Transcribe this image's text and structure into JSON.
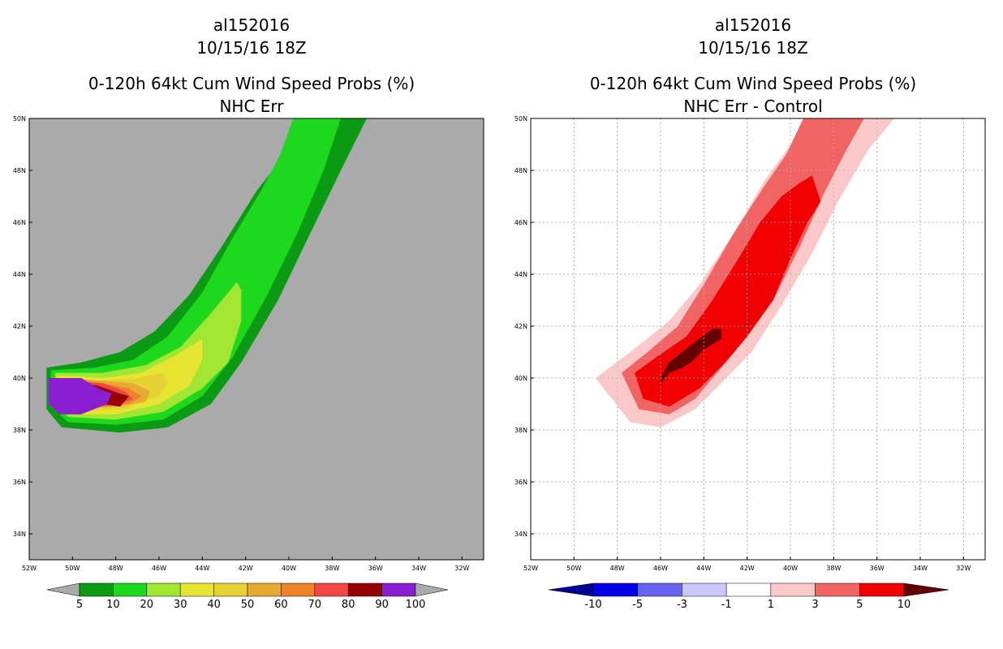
{
  "chart_data": [
    {
      "type": "filled-contour-map",
      "storm_id": "al152016",
      "datetime": "10/15/16 18Z",
      "title": "0-120h 64kt Cum Wind Speed Probs (%)",
      "subtitle": "NHC Err",
      "xlim": [
        -52,
        -31
      ],
      "ylim": [
        33,
        50
      ],
      "x_ticks": [
        "52W",
        "50W",
        "48W",
        "46W",
        "44W",
        "42W",
        "40W",
        "38W",
        "36W",
        "34W",
        "32W"
      ],
      "x_tick_values": [
        -52,
        -50,
        -48,
        -46,
        -44,
        -42,
        -40,
        -38,
        -36,
        -34,
        -32
      ],
      "y_ticks": [
        "34N",
        "36N",
        "38N",
        "40N",
        "42N",
        "44N",
        "46N",
        "48N",
        "50N"
      ],
      "y_tick_values": [
        34,
        36,
        38,
        40,
        42,
        44,
        46,
        48,
        50
      ],
      "grid": false,
      "background": "#aaaaaa",
      "colorbar": {
        "labels": [
          "5",
          "10",
          "20",
          "30",
          "40",
          "50",
          "60",
          "70",
          "80",
          "90",
          "100"
        ],
        "under_color": "#aaaaaa",
        "over_color": "#aaaaaa",
        "colors": [
          "#0a9a14",
          "#1ed81e",
          "#a0e632",
          "#e6e632",
          "#e6d232",
          "#e6aa32",
          "#f08228",
          "#f04646",
          "#960000",
          "#8c1ed2"
        ]
      },
      "contours": [
        {
          "level": 5,
          "color": "#0a9a14",
          "points": [
            [
              -51.2,
              40.4
            ],
            [
              -49.6,
              40.6
            ],
            [
              -47.8,
              41.0
            ],
            [
              -46.2,
              41.8
            ],
            [
              -44.6,
              43.2
            ],
            [
              -43.0,
              45.2
            ],
            [
              -41.5,
              47.2
            ],
            [
              -40.2,
              48.6
            ],
            [
              -39.4,
              50.0
            ],
            [
              -36.4,
              50.0
            ],
            [
              -37.6,
              48.0
            ],
            [
              -39.0,
              45.6
            ],
            [
              -40.5,
              43.0
            ],
            [
              -42.2,
              40.6
            ],
            [
              -43.6,
              39.0
            ],
            [
              -45.6,
              38.1
            ],
            [
              -47.8,
              37.9
            ],
            [
              -50.5,
              38.1
            ],
            [
              -51.2,
              38.8
            ]
          ]
        },
        {
          "level": 10,
          "color": "#1ed81e",
          "points": [
            [
              -51.0,
              40.3
            ],
            [
              -49.0,
              40.4
            ],
            [
              -47.2,
              40.7
            ],
            [
              -45.6,
              41.6
            ],
            [
              -44.0,
              43.3
            ],
            [
              -42.6,
              45.4
            ],
            [
              -41.3,
              47.2
            ],
            [
              -40.4,
              48.6
            ],
            [
              -39.8,
              50.0
            ],
            [
              -37.6,
              50.0
            ],
            [
              -38.4,
              48.0
            ],
            [
              -39.6,
              45.6
            ],
            [
              -41.0,
              43.2
            ],
            [
              -42.6,
              40.8
            ],
            [
              -44.0,
              39.3
            ],
            [
              -45.8,
              38.4
            ],
            [
              -48.0,
              38.2
            ],
            [
              -50.2,
              38.3
            ],
            [
              -51.0,
              38.9
            ]
          ]
        },
        {
          "level": 20,
          "color": "#a0e632",
          "points": [
            [
              -50.8,
              40.2
            ],
            [
              -48.6,
              40.2
            ],
            [
              -46.6,
              40.5
            ],
            [
              -45.0,
              41.2
            ],
            [
              -43.6,
              42.5
            ],
            [
              -42.4,
              43.7
            ],
            [
              -42.2,
              43.4
            ],
            [
              -42.2,
              42.2
            ],
            [
              -42.8,
              40.6
            ],
            [
              -44.0,
              39.6
            ],
            [
              -45.8,
              38.7
            ],
            [
              -48.0,
              38.4
            ],
            [
              -50.2,
              38.5
            ],
            [
              -50.8,
              39.0
            ]
          ]
        },
        {
          "level": 30,
          "color": "#e6e632",
          "points": [
            [
              -50.7,
              40.1
            ],
            [
              -48.6,
              40.0
            ],
            [
              -46.8,
              40.2
            ],
            [
              -45.2,
              40.9
            ],
            [
              -44.0,
              41.5
            ],
            [
              -44.0,
              40.7
            ],
            [
              -44.6,
              39.7
            ],
            [
              -46.0,
              39.0
            ],
            [
              -48.0,
              38.6
            ],
            [
              -50.0,
              38.6
            ],
            [
              -50.7,
              39.1
            ]
          ]
        },
        {
          "level": 40,
          "color": "#e6d232",
          "points": [
            [
              -50.6,
              40.0
            ],
            [
              -48.6,
              39.9
            ],
            [
              -47.0,
              40.0
            ],
            [
              -45.8,
              40.2
            ],
            [
              -45.6,
              39.8
            ],
            [
              -46.0,
              39.3
            ],
            [
              -47.6,
              38.8
            ],
            [
              -50.0,
              38.7
            ],
            [
              -50.6,
              39.2
            ]
          ]
        },
        {
          "level": 50,
          "color": "#e6aa32",
          "points": [
            [
              -50.5,
              40.0
            ],
            [
              -48.6,
              39.9
            ],
            [
              -47.2,
              39.8
            ],
            [
              -46.4,
              39.5
            ],
            [
              -46.6,
              39.1
            ],
            [
              -47.8,
              38.9
            ],
            [
              -50.0,
              38.8
            ],
            [
              -50.5,
              39.2
            ]
          ]
        },
        {
          "level": 60,
          "color": "#f08228",
          "points": [
            [
              -50.5,
              40.0
            ],
            [
              -48.6,
              39.8
            ],
            [
              -47.4,
              39.6
            ],
            [
              -46.8,
              39.3
            ],
            [
              -47.4,
              39.0
            ],
            [
              -48.6,
              38.9
            ],
            [
              -50.0,
              38.9
            ],
            [
              -50.5,
              39.3
            ]
          ]
        },
        {
          "level": 70,
          "color": "#f04646",
          "points": [
            [
              -50.4,
              39.9
            ],
            [
              -48.6,
              39.8
            ],
            [
              -47.6,
              39.5
            ],
            [
              -47.2,
              39.2
            ],
            [
              -47.8,
              39.0
            ],
            [
              -48.8,
              38.9
            ],
            [
              -50.0,
              38.9
            ],
            [
              -50.4,
              39.3
            ]
          ]
        },
        {
          "level": 80,
          "color": "#960000",
          "points": [
            [
              -50.3,
              39.9
            ],
            [
              -48.8,
              39.7
            ],
            [
              -47.8,
              39.4
            ],
            [
              -47.4,
              39.3
            ],
            [
              -47.8,
              38.9
            ],
            [
              -48.6,
              39.0
            ],
            [
              -50.0,
              39.0
            ],
            [
              -50.3,
              39.3
            ]
          ]
        },
        {
          "level": 90,
          "color": "#8c1ed2",
          "points": [
            [
              -51.1,
              40.0
            ],
            [
              -49.6,
              40.0
            ],
            [
              -48.8,
              39.6
            ],
            [
              -48.2,
              39.4
            ],
            [
              -48.4,
              39.0
            ],
            [
              -49.0,
              38.8
            ],
            [
              -49.6,
              38.6
            ],
            [
              -50.6,
              38.6
            ],
            [
              -51.1,
              39.0
            ]
          ]
        }
      ]
    },
    {
      "type": "filled-contour-map",
      "storm_id": "al152016",
      "datetime": "10/15/16 18Z",
      "title": "0-120h 64kt Cum Wind Speed Probs (%)",
      "subtitle": "NHC Err - Control",
      "xlim": [
        -52,
        -31
      ],
      "ylim": [
        33,
        50
      ],
      "x_ticks": [
        "52W",
        "50W",
        "48W",
        "46W",
        "44W",
        "42W",
        "40W",
        "38W",
        "36W",
        "34W",
        "32W"
      ],
      "x_tick_values": [
        -52,
        -50,
        -48,
        -46,
        -44,
        -42,
        -40,
        -38,
        -36,
        -34,
        -32
      ],
      "y_ticks": [
        "34N",
        "36N",
        "38N",
        "40N",
        "42N",
        "44N",
        "46N",
        "48N",
        "50N"
      ],
      "y_tick_values": [
        34,
        36,
        38,
        40,
        42,
        44,
        46,
        48,
        50
      ],
      "grid": true,
      "background": "#ffffff",
      "colorbar": {
        "labels": [
          "-10",
          "-5",
          "-3",
          "-1",
          "1",
          "3",
          "5",
          "10"
        ],
        "under_color": "#000096",
        "over_color": "#640000",
        "colors": [
          "#0000e6",
          "#6464f0",
          "#c8c8fa",
          "#ffffff",
          "#fac8c8",
          "#f06464",
          "#f00000"
        ]
      },
      "contours": [
        {
          "level": 1,
          "color": "#fac8c8",
          "points": [
            [
              -49.0,
              40.0
            ],
            [
              -47.4,
              41.0
            ],
            [
              -45.6,
              42.2
            ],
            [
              -44.2,
              43.6
            ],
            [
              -42.6,
              45.6
            ],
            [
              -41.2,
              47.6
            ],
            [
              -39.8,
              49.2
            ],
            [
              -39.2,
              50.0
            ],
            [
              -35.2,
              50.0
            ],
            [
              -36.4,
              48.8
            ],
            [
              -37.8,
              46.8
            ],
            [
              -39.0,
              44.8
            ],
            [
              -40.4,
              42.8
            ],
            [
              -41.8,
              41.0
            ],
            [
              -43.2,
              39.8
            ],
            [
              -44.4,
              38.8
            ],
            [
              -46.0,
              38.1
            ],
            [
              -47.4,
              38.3
            ]
          ]
        },
        {
          "level": 3,
          "color": "#f06464",
          "points": [
            [
              -47.8,
              40.2
            ],
            [
              -46.6,
              41.0
            ],
            [
              -45.2,
              42.0
            ],
            [
              -44.0,
              43.6
            ],
            [
              -42.6,
              45.6
            ],
            [
              -41.2,
              47.4
            ],
            [
              -40.2,
              48.6
            ],
            [
              -39.4,
              50.0
            ],
            [
              -36.6,
              50.0
            ],
            [
              -37.4,
              48.8
            ],
            [
              -38.4,
              47.2
            ],
            [
              -39.6,
              45.0
            ],
            [
              -40.8,
              43.0
            ],
            [
              -42.0,
              41.6
            ],
            [
              -43.2,
              40.4
            ],
            [
              -44.4,
              39.2
            ],
            [
              -45.6,
              38.6
            ],
            [
              -47.0,
              38.8
            ]
          ]
        },
        {
          "level": 5,
          "color": "#f00000",
          "points": [
            [
              -47.2,
              40.2
            ],
            [
              -46.2,
              40.8
            ],
            [
              -44.8,
              41.6
            ],
            [
              -43.6,
              43.0
            ],
            [
              -42.4,
              44.6
            ],
            [
              -41.4,
              46.0
            ],
            [
              -40.4,
              47.0
            ],
            [
              -39.6,
              47.5
            ],
            [
              -39.0,
              47.8
            ],
            [
              -38.6,
              46.8
            ],
            [
              -39.2,
              46.0
            ],
            [
              -40.0,
              44.6
            ],
            [
              -40.8,
              43.0
            ],
            [
              -42.0,
              41.6
            ],
            [
              -43.0,
              40.6
            ],
            [
              -44.2,
              39.6
            ],
            [
              -45.6,
              38.9
            ],
            [
              -46.8,
              39.2
            ]
          ]
        },
        {
          "level": 10,
          "color": "#640000",
          "points": [
            [
              -46.0,
              40.0
            ],
            [
              -45.6,
              40.6
            ],
            [
              -45.0,
              41.0
            ],
            [
              -44.4,
              41.4
            ],
            [
              -43.6,
              41.9
            ],
            [
              -43.2,
              41.9
            ],
            [
              -43.2,
              41.5
            ],
            [
              -44.0,
              41.1
            ],
            [
              -44.6,
              40.6
            ],
            [
              -45.0,
              40.4
            ],
            [
              -45.6,
              40.2
            ],
            [
              -46.0,
              39.8
            ]
          ]
        }
      ]
    }
  ]
}
